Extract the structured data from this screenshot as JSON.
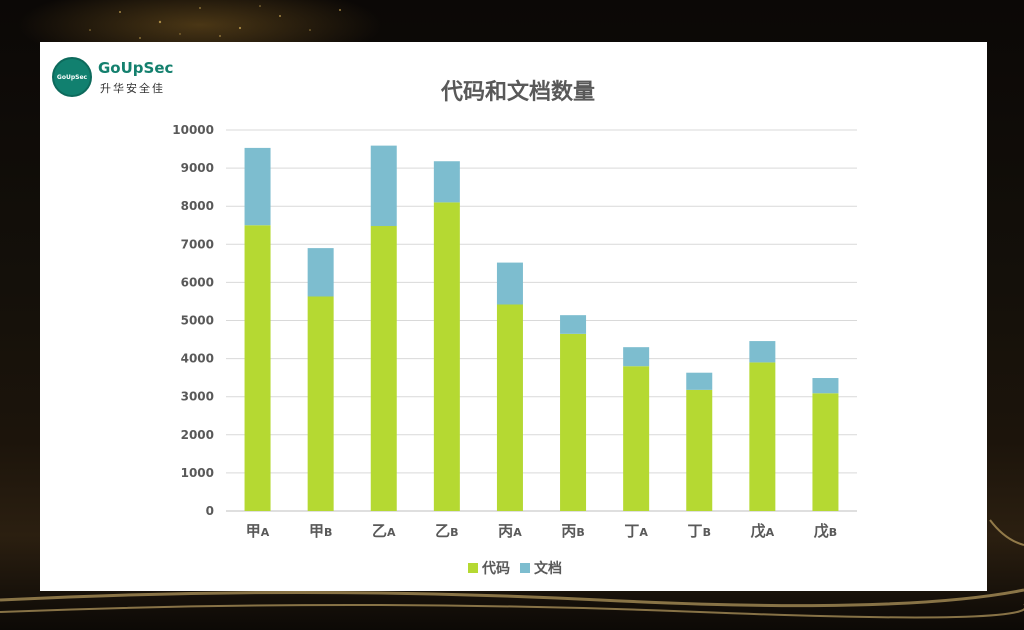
{
  "logo": {
    "en": "GoUpSec",
    "zh": "升华安全佳",
    "badge": "GoUpSec"
  },
  "colors": {
    "code": "#b5d932",
    "doc": "#7dbdcf",
    "grid": "#d9d9d9",
    "axis_text": "#595959",
    "title": "#595959"
  },
  "chart_data": {
    "type": "bar",
    "stacked": true,
    "title": "代码和文档数量",
    "xlabel": "",
    "ylabel": "",
    "ylim": [
      0,
      10000
    ],
    "yticks": [
      0,
      1000,
      2000,
      3000,
      4000,
      5000,
      6000,
      7000,
      8000,
      9000,
      10000
    ],
    "grid": true,
    "legend_position": "bottom",
    "categories": [
      {
        "main": "甲",
        "sub": "A"
      },
      {
        "main": "甲",
        "sub": "B"
      },
      {
        "main": "乙",
        "sub": "A"
      },
      {
        "main": "乙",
        "sub": "B"
      },
      {
        "main": "丙",
        "sub": "A"
      },
      {
        "main": "丙",
        "sub": "B"
      },
      {
        "main": "丁",
        "sub": "A"
      },
      {
        "main": "丁",
        "sub": "B"
      },
      {
        "main": "戊",
        "sub": "A"
      },
      {
        "main": "戊",
        "sub": "B"
      }
    ],
    "series": [
      {
        "name": "代码",
        "values": [
          7500,
          5630,
          7480,
          8100,
          5420,
          4650,
          3800,
          3180,
          3900,
          3090
        ]
      },
      {
        "name": "文档",
        "values": [
          2030,
          1270,
          2110,
          1080,
          1100,
          490,
          500,
          450,
          560,
          400
        ]
      }
    ]
  }
}
